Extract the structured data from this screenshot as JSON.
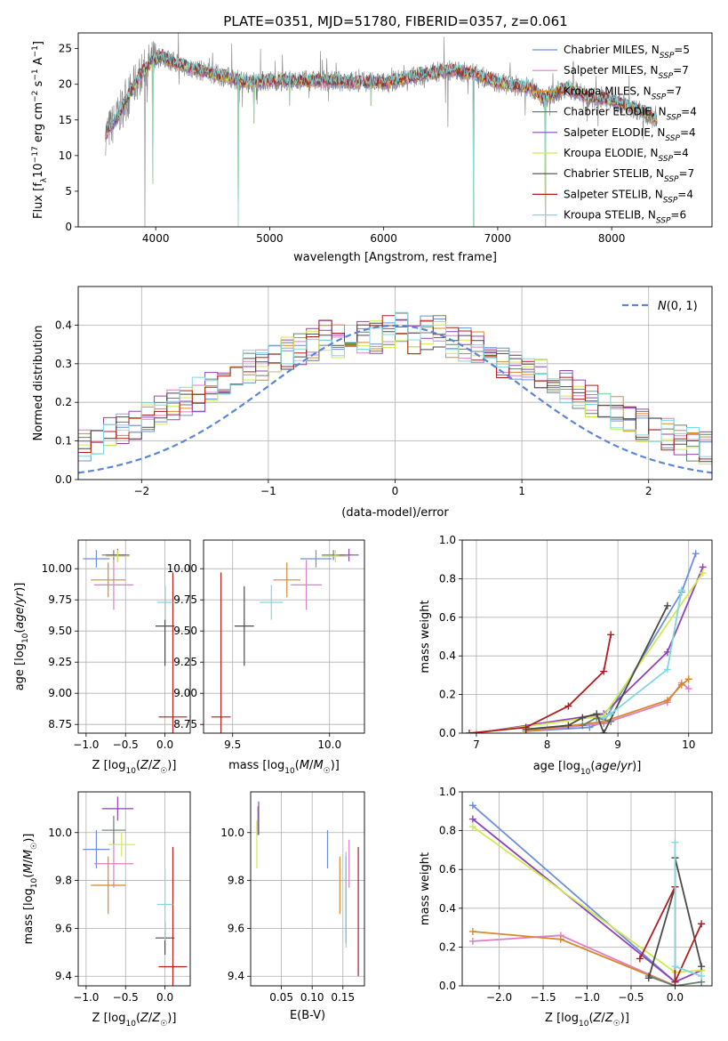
{
  "figure": {
    "title": "PLATE=0351, MJD=51780, FIBERID=0357, z=0.061"
  },
  "colors": {
    "Chabrier MILES": "#6b8fdc",
    "Salpeter MILES": "#dd7fc8",
    "Kroupa MILES": "#d8892a",
    "Chabrier ELODIE": "#6a7f6f",
    "Salpeter ELODIE": "#8e44b4",
    "Kroupa ELODIE": "#cfea4e",
    "Chabrier STELIB": "#4a4a4a",
    "Salpeter STELIB": "#b21c1c",
    "Kroupa STELIB": "#7fd8e0",
    "data": "#7f7f7f",
    "normal": "#5b86d6"
  },
  "chart_data": [
    {
      "id": "spectrum",
      "type": "line",
      "title": "PLATE=0351, MJD=51780, FIBERID=0357, z=0.061",
      "xlabel": "wavelength [Angstrom, rest frame]",
      "ylabel": "Flux [f_λ 10^-17 erg cm^-2 s^-1 A^-1]",
      "xlim": [
        3320,
        8880
      ],
      "ylim": [
        0,
        27.2
      ],
      "xticks": [
        "4000",
        "5000",
        "6000",
        "7000",
        "8000"
      ],
      "yticks": [
        "0",
        "5",
        "10",
        "15",
        "20",
        "25"
      ],
      "legend": [
        "Chabrier MILES, N_SSP=5",
        "Salpeter MILES, N_SSP=7",
        "Kroupa MILES, N_SSP=7",
        "Chabrier ELODIE, N_SSP=4",
        "Salpeter ELODIE, N_SSP=4",
        "Kroupa ELODIE, N_SSP=4",
        "Chabrier STELIB, N_SSP=7",
        "Salpeter STELIB, N_SSP=4",
        "Kroupa STELIB, N_SSP=6"
      ],
      "legend_placement": "right",
      "continuum": [
        [
          3560,
          13
        ],
        [
          3650,
          15
        ],
        [
          3750,
          18
        ],
        [
          3850,
          21
        ],
        [
          3950,
          23
        ],
        [
          4050,
          24
        ],
        [
          4100,
          23.5
        ],
        [
          4250,
          22.5
        ],
        [
          4500,
          21.5
        ],
        [
          4800,
          20.3
        ],
        [
          5000,
          20.5
        ],
        [
          5500,
          20.5
        ],
        [
          6000,
          20.2
        ],
        [
          6400,
          21.5
        ],
        [
          6550,
          22
        ],
        [
          6800,
          21.5
        ],
        [
          7000,
          20.2
        ],
        [
          7300,
          19.5
        ],
        [
          7400,
          18
        ],
        [
          7600,
          19.5
        ],
        [
          7800,
          18.2
        ],
        [
          8000,
          17.8
        ],
        [
          8300,
          16
        ],
        [
          8400,
          14.8
        ]
      ],
      "drops": [
        [
          3905,
          0
        ],
        [
          3975,
          6
        ],
        [
          4725,
          0
        ],
        [
          4860,
          14.5
        ],
        [
          5175,
          17
        ],
        [
          5890,
          17
        ],
        [
          6563,
          14
        ],
        [
          6790,
          0
        ],
        [
          7420,
          0
        ]
      ]
    },
    {
      "id": "residuals",
      "type": "bar",
      "xlabel": "(data-model)/error",
      "ylabel": "Normed distribution",
      "xlim": [
        -2.5,
        2.5
      ],
      "ylim": [
        0,
        0.5
      ],
      "xticks": [
        "−2",
        "−1",
        "0",
        "1",
        "2"
      ],
      "yticks": [
        "0.0",
        "0.1",
        "0.2",
        "0.3",
        "0.4"
      ],
      "bin_width": 0.1,
      "series_profile": [
        0.03,
        0.04,
        0.04,
        0.05,
        0.05,
        0.06,
        0.07,
        0.07,
        0.09,
        0.1,
        0.12,
        0.13,
        0.14,
        0.16,
        0.18,
        0.19,
        0.21,
        0.22,
        0.24,
        0.26,
        0.27,
        0.29,
        0.3,
        0.32,
        0.33,
        0.34,
        0.35,
        0.37,
        0.36,
        0.38,
        0.37,
        0.37,
        0.38,
        0.39,
        0.37,
        0.38,
        0.38,
        0.36,
        0.35,
        0.34,
        0.32,
        0.3,
        0.29,
        0.28,
        0.27,
        0.25,
        0.24,
        0.22,
        0.2,
        0.18,
        0.17,
        0.16,
        0.14,
        0.13,
        0.12,
        0.1,
        0.09,
        0.08,
        0.07,
        0.07,
        0.06,
        0.05,
        0.05,
        0.04,
        0.04,
        0.03,
        0.03,
        0.03,
        0.03,
        0.03
      ],
      "legend": "N(0, 1)",
      "legend_placement": "top-right"
    },
    {
      "id": "age-vs-Z",
      "type": "scatter",
      "xlabel": "Z [log10(Z/Z☉)]",
      "ylabel": "age [log10(age/yr)]",
      "xlim": [
        -1.1,
        0.32
      ],
      "ylim": [
        8.68,
        10.23
      ],
      "xticks": [
        "−1.0",
        "−0.5",
        "0.0"
      ],
      "yticks": [
        "8.75",
        "9.00",
        "9.25",
        "9.50",
        "9.75",
        "10.00"
      ],
      "points": [
        {
          "model": "Chabrier MILES",
          "x": -0.87,
          "xe": 0.17,
          "y": 10.08,
          "ye": 0.07
        },
        {
          "model": "Salpeter MILES",
          "x": -0.65,
          "xe": 0.25,
          "y": 9.87,
          "ye": 0.2
        },
        {
          "model": "Kroupa MILES",
          "x": -0.72,
          "xe": 0.22,
          "y": 9.91,
          "ye": 0.14
        },
        {
          "model": "Chabrier ELODIE",
          "x": -0.65,
          "xe": 0.15,
          "y": 10.11,
          "ye": 0.04
        },
        {
          "model": "Salpeter ELODIE",
          "x": -0.6,
          "xe": 0.15,
          "y": 10.11,
          "ye": 0.05
        },
        {
          "model": "Kroupa ELODIE",
          "x": -0.6,
          "xe": 0.15,
          "y": 10.1,
          "ye": 0.05
        },
        {
          "model": "Chabrier STELIB",
          "x": 0.0,
          "xe": 0.12,
          "y": 9.54,
          "ye": 0.32
        },
        {
          "model": "Salpeter STELIB",
          "x": 0.1,
          "xe": 0.18,
          "y": 8.81,
          "ye": 1.16
        },
        {
          "model": "Kroupa STELIB",
          "x": 0.0,
          "xe": 0.1,
          "y": 9.73,
          "ye": 0.14
        }
      ]
    },
    {
      "id": "age-vs-mass",
      "type": "scatter",
      "xlabel": "mass [log10(M/M☉)]",
      "ylabel": "",
      "xlim": [
        9.35,
        10.18
      ],
      "ylim": [
        8.68,
        10.23
      ],
      "xticks": [
        "9.5",
        "10.0"
      ],
      "yticks": [
        "8.75",
        "9.00",
        "9.25",
        "9.50",
        "9.75",
        "10.00"
      ],
      "points": [
        {
          "model": "Chabrier MILES",
          "x": 9.93,
          "xe": 0.08,
          "y": 10.08,
          "ye": 0.07
        },
        {
          "model": "Salpeter MILES",
          "x": 9.88,
          "xe": 0.08,
          "y": 9.87,
          "ye": 0.2
        },
        {
          "model": "Kroupa MILES",
          "x": 9.78,
          "xe": 0.07,
          "y": 9.91,
          "ye": 0.14
        },
        {
          "model": "Chabrier ELODIE",
          "x": 10.02,
          "xe": 0.06,
          "y": 10.11,
          "ye": 0.04
        },
        {
          "model": "Salpeter ELODIE",
          "x": 10.1,
          "xe": 0.05,
          "y": 10.11,
          "ye": 0.05
        },
        {
          "model": "Kroupa ELODIE",
          "x": 10.03,
          "xe": 0.07,
          "y": 10.1,
          "ye": 0.05
        },
        {
          "model": "Chabrier STELIB",
          "x": 9.56,
          "xe": 0.05,
          "y": 9.54,
          "ye": 0.32
        },
        {
          "model": "Salpeter STELIB",
          "x": 9.44,
          "xe": 0.05,
          "y": 8.81,
          "ye": 1.16
        },
        {
          "model": "Kroupa STELIB",
          "x": 9.7,
          "xe": 0.06,
          "y": 9.73,
          "ye": 0.14
        }
      ]
    },
    {
      "id": "weight-vs-age",
      "type": "line",
      "xlabel": "age [log10(age/yr)]",
      "ylabel": "mass weight",
      "xlim": [
        6.8,
        10.33
      ],
      "ylim": [
        0,
        1.0
      ],
      "xticks": [
        "7",
        "8",
        "9",
        "10"
      ],
      "yticks": [
        "0.0",
        "0.2",
        "0.4",
        "0.6",
        "0.8",
        "1.0"
      ],
      "series": [
        {
          "model": "Chabrier MILES",
          "x": [
            7.7,
            8.6,
            8.8,
            9.9,
            10.1
          ],
          "y": [
            0.01,
            0.03,
            0.06,
            0.73,
            0.93
          ]
        },
        {
          "model": "Salpeter MILES",
          "x": [
            7.7,
            8.8,
            9.7,
            9.9,
            10.0
          ],
          "y": [
            0.01,
            0.05,
            0.16,
            0.26,
            0.23
          ]
        },
        {
          "model": "Kroupa MILES",
          "x": [
            7.7,
            8.8,
            9.7,
            9.9,
            10.0
          ],
          "y": [
            0.01,
            0.06,
            0.17,
            0.25,
            0.28
          ]
        },
        {
          "model": "Chabrier ELODIE",
          "x": [
            8.5,
            8.7,
            8.9
          ],
          "y": [
            0.04,
            0.08,
            0.06
          ]
        },
        {
          "model": "Salpeter ELODIE",
          "x": [
            7.0,
            8.8,
            9.7,
            10.2
          ],
          "y": [
            0.0,
            0.1,
            0.42,
            0.86
          ]
        },
        {
          "model": "Kroupa ELODIE",
          "x": [
            7.0,
            8.8,
            10.2
          ],
          "y": [
            0.0,
            0.09,
            0.83
          ]
        },
        {
          "model": "Chabrier STELIB",
          "x": [
            7.7,
            8.3,
            8.5,
            8.7,
            8.8,
            9.7
          ],
          "y": [
            0.02,
            0.04,
            0.08,
            0.1,
            0.0,
            0.66
          ]
        },
        {
          "model": "Salpeter STELIB",
          "x": [
            6.9,
            7.7,
            8.3,
            8.8,
            8.9
          ],
          "y": [
            0.0,
            0.03,
            0.14,
            0.32,
            0.51
          ]
        },
        {
          "model": "Kroupa STELIB",
          "x": [
            8.8,
            8.9,
            9.7,
            9.9
          ],
          "y": [
            0.08,
            0.1,
            0.33,
            0.74
          ]
        }
      ]
    },
    {
      "id": "mass-vs-Z",
      "type": "scatter",
      "xlabel": "Z [log10(Z/Z☉)]",
      "ylabel": "mass [log10(M/M☉)]",
      "xlim": [
        -1.1,
        0.32
      ],
      "ylim": [
        9.36,
        10.17
      ],
      "xticks": [
        "−1.0",
        "−0.5",
        "0.0"
      ],
      "yticks": [
        "9.4",
        "9.6",
        "9.8",
        "10.0"
      ],
      "points": [
        {
          "model": "Chabrier MILES",
          "x": -0.87,
          "xe": 0.17,
          "y": 9.93,
          "ye": 0.08
        },
        {
          "model": "Salpeter MILES",
          "x": -0.65,
          "xe": 0.25,
          "y": 9.87,
          "ye": 0.1
        },
        {
          "model": "Kroupa MILES",
          "x": -0.72,
          "xe": 0.22,
          "y": 9.78,
          "ye": 0.12
        },
        {
          "model": "Chabrier ELODIE",
          "x": -0.65,
          "xe": 0.15,
          "y": 10.01,
          "ye": 0.06
        },
        {
          "model": "Salpeter ELODIE",
          "x": -0.6,
          "xe": 0.2,
          "y": 10.1,
          "ye": 0.05
        },
        {
          "model": "Kroupa ELODIE",
          "x": -0.55,
          "xe": 0.17,
          "y": 9.95,
          "ye": 0.05
        },
        {
          "model": "Chabrier STELIB",
          "x": 0.0,
          "xe": 0.12,
          "y": 9.56,
          "ye": 0.07
        },
        {
          "model": "Salpeter STELIB",
          "x": 0.1,
          "xe": 0.18,
          "y": 9.44,
          "ye": 0.5
        },
        {
          "model": "Kroupa STELIB",
          "x": 0.0,
          "xe": 0.1,
          "y": 9.7,
          "ye": 0.15
        }
      ]
    },
    {
      "id": "mass-vs-EBV",
      "type": "scatter",
      "xlabel": "E(B-V)",
      "ylabel": "",
      "xlim": [
        0.0,
        0.185
      ],
      "ylim": [
        9.36,
        10.17
      ],
      "xticks": [
        "0.05",
        "0.10",
        "0.15"
      ],
      "yticks": [
        "9.4",
        "9.6",
        "9.8",
        "10.0"
      ],
      "points": [
        {
          "model": "Chabrier MILES",
          "x": 0.125,
          "y": 9.93,
          "ye": 0.08
        },
        {
          "model": "Salpeter MILES",
          "x": 0.16,
          "y": 9.87,
          "ye": 0.1
        },
        {
          "model": "Kroupa MILES",
          "x": 0.145,
          "y": 9.78,
          "ye": 0.12
        },
        {
          "model": "Chabrier ELODIE",
          "x": 0.012,
          "y": 10.05,
          "ye": 0.06
        },
        {
          "model": "Salpeter ELODIE",
          "x": 0.013,
          "y": 10.06,
          "ye": 0.07
        },
        {
          "model": "Kroupa ELODIE",
          "x": 0.01,
          "y": 9.95,
          "ye": 0.1
        },
        {
          "model": "Chabrier STELIB",
          "x": 0.155,
          "y": 9.72,
          "ye": 0.18
        },
        {
          "model": "Salpeter STELIB",
          "x": 0.175,
          "y": 9.67,
          "ye": 0.27
        },
        {
          "model": "Kroupa STELIB",
          "x": 0.155,
          "y": 9.72,
          "ye": 0.2
        }
      ]
    },
    {
      "id": "weight-vs-Z",
      "type": "line",
      "xlabel": "Z [log10(Z/Z☉)]",
      "ylabel": "mass weight",
      "xlim": [
        -2.42,
        0.42
      ],
      "ylim": [
        0,
        1.0
      ],
      "xticks": [
        "−2.0",
        "−1.5",
        "−1.0",
        "−0.5",
        "0.0"
      ],
      "yticks": [
        "0.0",
        "0.2",
        "0.4",
        "0.6",
        "0.8",
        "1.0"
      ],
      "series": [
        {
          "model": "Chabrier MILES",
          "x": [
            -2.3,
            0.0
          ],
          "y": [
            0.93,
            0.02
          ]
        },
        {
          "model": "Salpeter MILES",
          "x": [
            -2.3,
            -1.3,
            0.0
          ],
          "y": [
            0.23,
            0.26,
            0.0
          ]
        },
        {
          "model": "Kroupa MILES",
          "x": [
            -2.3,
            -1.3,
            0.0
          ],
          "y": [
            0.28,
            0.24,
            0.0
          ]
        },
        {
          "model": "Chabrier ELODIE",
          "x": [
            -0.3,
            0.0,
            0.3
          ],
          "y": [
            0.05,
            0.0,
            0.02
          ]
        },
        {
          "model": "Salpeter ELODIE",
          "x": [
            -2.3,
            0.0,
            0.3
          ],
          "y": [
            0.86,
            0.02,
            0.08
          ]
        },
        {
          "model": "Kroupa ELODIE",
          "x": [
            -2.3,
            0.0,
            0.3
          ],
          "y": [
            0.82,
            0.07,
            0.08
          ]
        },
        {
          "model": "Chabrier STELIB",
          "x": [
            -0.3,
            0.0,
            0.0,
            0.3
          ],
          "y": [
            0.04,
            0.51,
            0.66,
            0.1
          ]
        },
        {
          "model": "Salpeter STELIB",
          "x": [
            -0.4,
            0.0,
            0.0,
            0.3
          ],
          "y": [
            0.14,
            0.51,
            0.02,
            0.32
          ]
        },
        {
          "model": "Kroupa STELIB",
          "x": [
            0.0,
            0.0,
            0.3
          ],
          "y": [
            0.74,
            0.1,
            0.05
          ]
        }
      ]
    }
  ]
}
